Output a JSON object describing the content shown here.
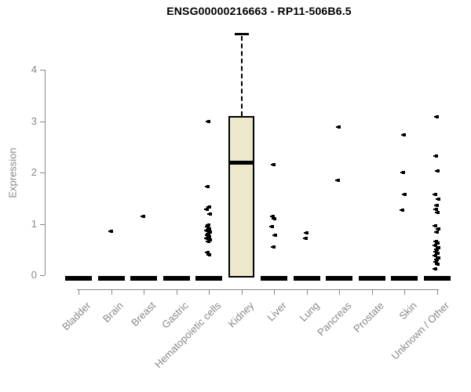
{
  "chart_data": {
    "type": "boxplot",
    "title": "ENSG00000216663 - RP11-506B6.5",
    "xlabel": "",
    "ylabel": "Expression",
    "ylim": [
      0,
      4.8
    ],
    "yticks": [
      0,
      1,
      2,
      3,
      4
    ],
    "grid": false,
    "legend": "none",
    "colors": {
      "box_fill": "#EDE8CC",
      "box_border": "#000000",
      "point_color": "#000000",
      "axis_color": "#888888",
      "title_color": "#000000"
    },
    "categories": [
      "Bladder",
      "Brain",
      "Breast",
      "Gastric",
      "Hematopoietic cells",
      "Kidney",
      "Liver",
      "Lung",
      "Pancreas",
      "Prostate",
      "Skin",
      "Unknown / Other"
    ],
    "boxes": [
      {
        "category": "Bladder",
        "whisker_low": 0,
        "q1": 0,
        "median": 0,
        "q3": 0,
        "whisker_high": 0,
        "collapsed": true
      },
      {
        "category": "Brain",
        "whisker_low": 0,
        "q1": 0,
        "median": 0,
        "q3": 0,
        "whisker_high": 0,
        "collapsed": true
      },
      {
        "category": "Breast",
        "whisker_low": 0,
        "q1": 0,
        "median": 0,
        "q3": 0,
        "whisker_high": 0,
        "collapsed": true
      },
      {
        "category": "Gastric",
        "whisker_low": 0,
        "q1": 0,
        "median": 0,
        "q3": 0,
        "whisker_high": 0,
        "collapsed": true
      },
      {
        "category": "Hematopoietic cells",
        "whisker_low": 0,
        "q1": 0,
        "median": 0,
        "q3": 0,
        "whisker_high": 0,
        "collapsed": true
      },
      {
        "category": "Kidney",
        "whisker_low": 0,
        "q1": 0,
        "median": 2.2,
        "q3": 3.1,
        "whisker_high": 4.7,
        "collapsed": false
      },
      {
        "category": "Liver",
        "whisker_low": 0,
        "q1": 0,
        "median": 0,
        "q3": 0,
        "whisker_high": 0,
        "collapsed": true
      },
      {
        "category": "Lung",
        "whisker_low": 0,
        "q1": 0,
        "median": 0,
        "q3": 0,
        "whisker_high": 0,
        "collapsed": true
      },
      {
        "category": "Pancreas",
        "whisker_low": 0,
        "q1": 0,
        "median": 0,
        "q3": 0,
        "whisker_high": 0,
        "collapsed": true
      },
      {
        "category": "Prostate",
        "whisker_low": 0,
        "q1": 0,
        "median": 0,
        "q3": 0,
        "whisker_high": 0,
        "collapsed": true
      },
      {
        "category": "Skin",
        "whisker_low": 0,
        "q1": 0,
        "median": 0,
        "q3": 0,
        "whisker_high": 0,
        "collapsed": true
      },
      {
        "category": "Unknown / Other",
        "whisker_low": 0,
        "q1": 0,
        "median": 0,
        "q3": 0,
        "whisker_high": 0,
        "collapsed": true
      }
    ],
    "points": [
      [],
      [
        0.85
      ],
      [
        1.15
      ],
      [],
      [
        3.0,
        1.72,
        1.33,
        1.29,
        1.19,
        0.98,
        0.94,
        0.9,
        0.87,
        0.84,
        0.81,
        0.78,
        0.75,
        0.72,
        0.69,
        0.66,
        0.44,
        0.4
      ],
      [],
      [
        2.15,
        1.15,
        1.1,
        0.95,
        0.78,
        0.55
      ],
      [
        0.82,
        0.72
      ],
      [
        2.88,
        1.85
      ],
      [],
      [
        2.73,
        2.0,
        1.58,
        1.27
      ],
      [
        3.08,
        2.32,
        2.03,
        1.57,
        1.48,
        1.36,
        1.28,
        1.22,
        0.96,
        0.9,
        0.84,
        0.66,
        0.62,
        0.58,
        0.54,
        0.5,
        0.46,
        0.42,
        0.38,
        0.34,
        0.3,
        0.26,
        0.22,
        0.12
      ]
    ]
  }
}
